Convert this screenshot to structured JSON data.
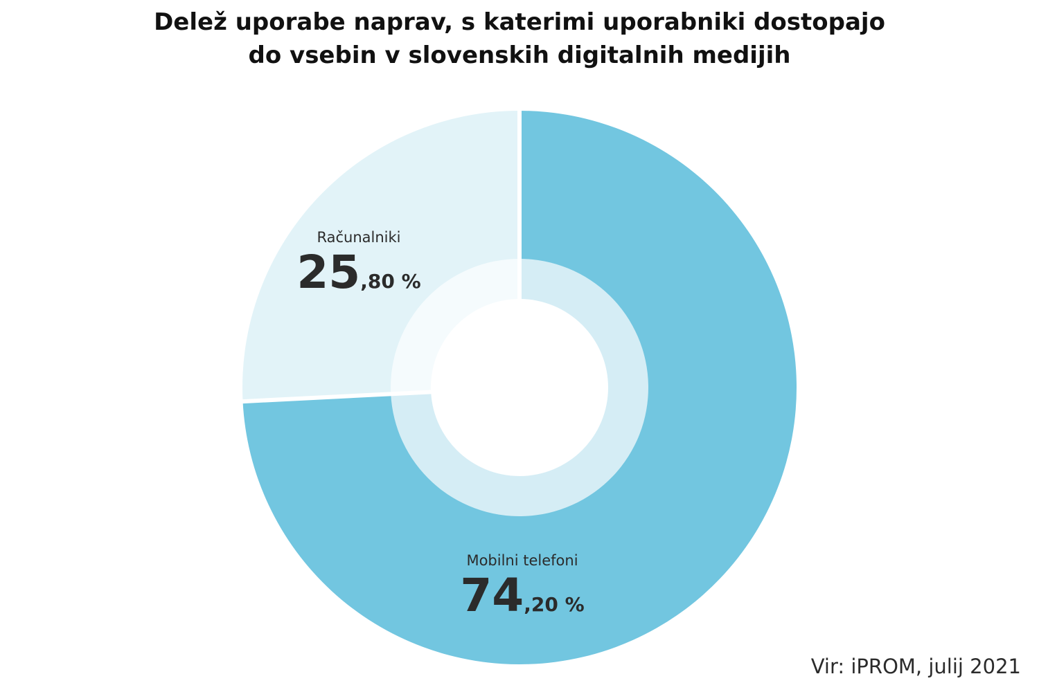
{
  "chart_data": {
    "type": "pie",
    "title": "Delež uporabe naprav, s katerimi uporabniki dostopajo do vsebin v slovenskih digitalnih medijih",
    "title_lines": [
      "Delež uporabe naprav, s katerimi uporabniki dostopajo",
      "do vsebin v slovenskih digitalnih medijih"
    ],
    "categories": [
      "Računalniki",
      "Mobilni telefoni"
    ],
    "values": [
      25.8,
      74.2
    ],
    "value_labels": [
      {
        "int": "25",
        "dec": ",80 %"
      },
      {
        "int": "74",
        "dec": ",20 %"
      }
    ],
    "colors": [
      "#e2f3f8",
      "#72c6e0"
    ],
    "inner_ring_colors": [
      "#f5fbfd",
      "#d5edf5"
    ],
    "separator_color": "#ffffff"
  },
  "source": "Vir: iPROM, julij 2021"
}
